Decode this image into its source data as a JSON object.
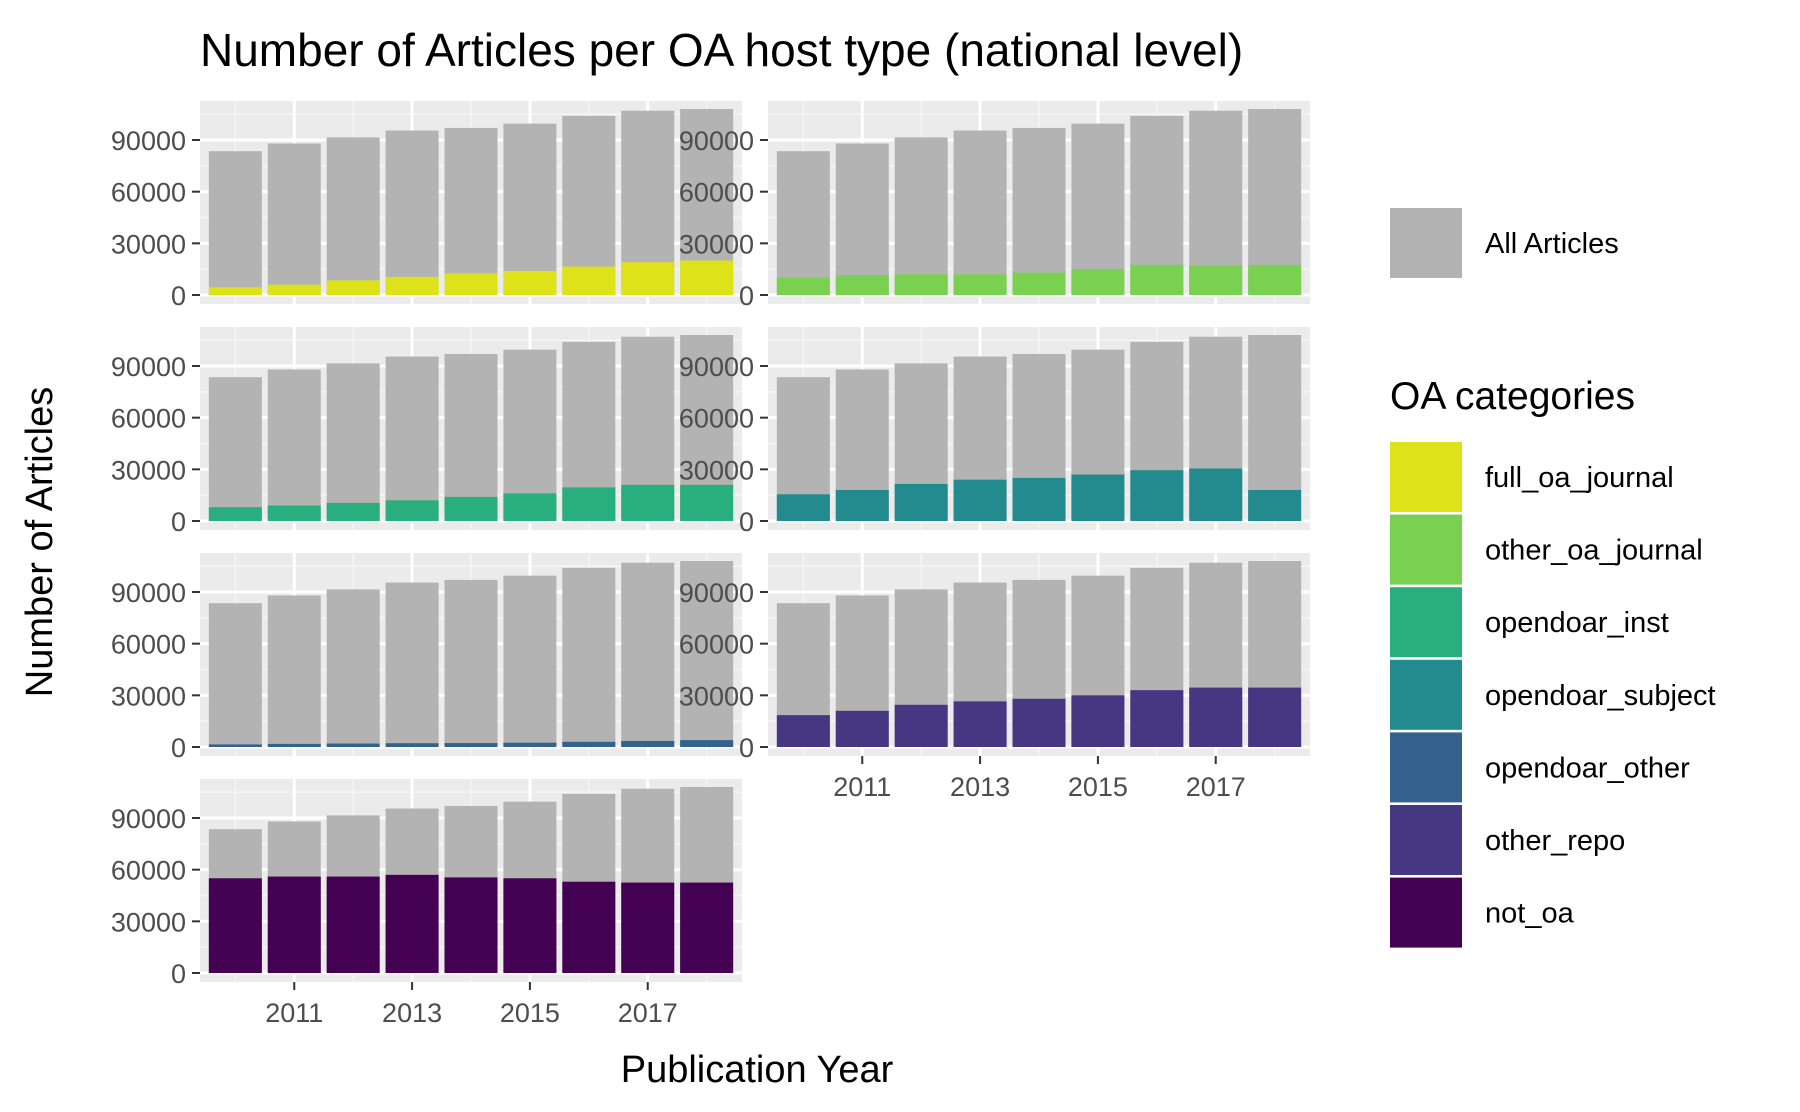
{
  "chart_data": {
    "type": "bar",
    "title": "Number of Articles per OA host type (national level)",
    "xlabel": "Publication Year",
    "ylabel": "Number of Articles",
    "x": [
      2010,
      2011,
      2012,
      2013,
      2014,
      2015,
      2016,
      2017,
      2018
    ],
    "x_tick_labels": [
      "2011",
      "2013",
      "2015",
      "2017"
    ],
    "y_ticks": [
      0,
      30000,
      60000,
      90000
    ],
    "y_tick_labels": [
      "0",
      "30000",
      "60000",
      "90000"
    ],
    "ylim": [
      0,
      108000
    ],
    "grid": true,
    "facet_layout": "4 rows x 2 columns, free x axis labels on bottom panels",
    "total_series": {
      "name": "All Articles",
      "color": "#b3b3b3",
      "values": [
        83500,
        88000,
        91500,
        95500,
        97000,
        99500,
        104000,
        107000,
        108000
      ]
    },
    "series": [
      {
        "name": "full_oa_journal",
        "color": "#dde318",
        "values": [
          4500,
          6000,
          8500,
          10500,
          12500,
          14000,
          16500,
          19000,
          20000
        ]
      },
      {
        "name": "other_oa_journal",
        "color": "#7ad151",
        "values": [
          10000,
          11500,
          12000,
          12000,
          13000,
          15000,
          17500,
          17000,
          17500
        ]
      },
      {
        "name": "opendoar_inst",
        "color": "#29af7f",
        "values": [
          8000,
          9000,
          10500,
          12000,
          14000,
          16000,
          19500,
          21000,
          21000
        ]
      },
      {
        "name": "opendoar_subject",
        "color": "#238a8d",
        "values": [
          15500,
          18000,
          21500,
          24000,
          25000,
          27000,
          29500,
          30500,
          18000
        ]
      },
      {
        "name": "opendoar_other",
        "color": "#33638d",
        "values": [
          1500,
          1800,
          2000,
          2200,
          2300,
          2500,
          3000,
          3500,
          4000
        ]
      },
      {
        "name": "other_repo",
        "color": "#453781",
        "values": [
          18500,
          21000,
          24500,
          26500,
          28000,
          30000,
          33000,
          34500,
          34500
        ]
      },
      {
        "name": "not_oa",
        "color": "#440154",
        "values": [
          55000,
          56000,
          56000,
          57000,
          55500,
          55000,
          53000,
          52500,
          52500
        ]
      }
    ],
    "legend": {
      "placement": "right",
      "total_label": "All Articles",
      "title": "OA categories",
      "entries": [
        "full_oa_journal",
        "other_oa_journal",
        "opendoar_inst",
        "opendoar_subject",
        "opendoar_other",
        "other_repo",
        "not_oa"
      ]
    }
  }
}
